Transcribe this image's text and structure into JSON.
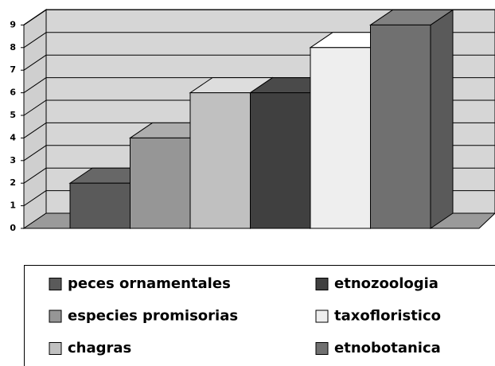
{
  "chart_data": {
    "type": "bar",
    "categories": [
      null
    ],
    "series": [
      {
        "name": "peces ornamentales",
        "color": "#5a5a5a",
        "values": [
          2
        ]
      },
      {
        "name": "especies promisorias",
        "color": "#969696",
        "values": [
          4
        ]
      },
      {
        "name": "chagras",
        "color": "#c0c0c0",
        "values": [
          6
        ]
      },
      {
        "name": "etnozoologia",
        "color": "#404040",
        "values": [
          6
        ]
      },
      {
        "name": "taxofloristico",
        "color": "#eeeeee",
        "values": [
          8
        ]
      },
      {
        "name": "etnobotanica",
        "color": "#707070",
        "values": [
          9
        ]
      }
    ],
    "ylim": [
      0,
      9
    ],
    "yticks": [
      0,
      1,
      2,
      3,
      4,
      5,
      6,
      7,
      8,
      9
    ],
    "grid": true
  }
}
